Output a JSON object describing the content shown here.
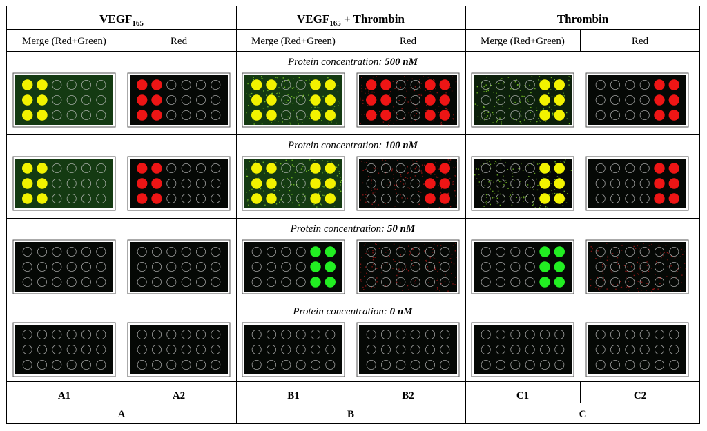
{
  "header": {
    "groups": [
      {
        "main": "VEGF",
        "sub": "165",
        "rest": ""
      },
      {
        "main": "VEGF",
        "sub": "165",
        "rest": " + Thrombin"
      },
      {
        "main": "Thrombin",
        "sub": "",
        "rest": ""
      }
    ],
    "subheaders": [
      "Merge (Red+Green)",
      "Red",
      "Merge (Red+Green)",
      "Red",
      "Merge (Red+Green)",
      "Red"
    ]
  },
  "rows": [
    {
      "prefix": "Protein concentration: ",
      "value": "500 nM"
    },
    {
      "prefix": "Protein concentration: ",
      "value": "100 nM"
    },
    {
      "prefix": "Protein concentration: ",
      "value": "50 nM"
    },
    {
      "prefix": "Protein concentration: ",
      "value": "0 nM"
    }
  ],
  "panel_labels": [
    "A1",
    "A2",
    "B1",
    "B2",
    "C1",
    "C2"
  ],
  "group_labels": [
    "A",
    "B",
    "C"
  ],
  "colors": {
    "yellow_spot": "#f2f200",
    "red_spot": "#ee1515",
    "green_spot": "#22ee22",
    "outline_spot": "#c8c8c8",
    "panel_bg": "#050805",
    "green_bg": "#143a12"
  },
  "spot_grid": {
    "rows": 3,
    "cols": 6,
    "panels": [
      [
        "yellow:0,1",
        "red:0,1",
        "yellow:0,1,4,5",
        "red:0,1,4,5",
        "yellow:4,5",
        "red:4,5"
      ],
      [
        "yellow:0,1",
        "red:0,1",
        "yellow:0,1,4,5",
        "red:4,5",
        "yellow:4,5",
        "red:4,5"
      ],
      [
        "none",
        "none",
        "green:4,5",
        "none",
        "green:4,5",
        "none"
      ],
      [
        "none",
        "none",
        "none",
        "none",
        "none",
        "none"
      ]
    ]
  }
}
